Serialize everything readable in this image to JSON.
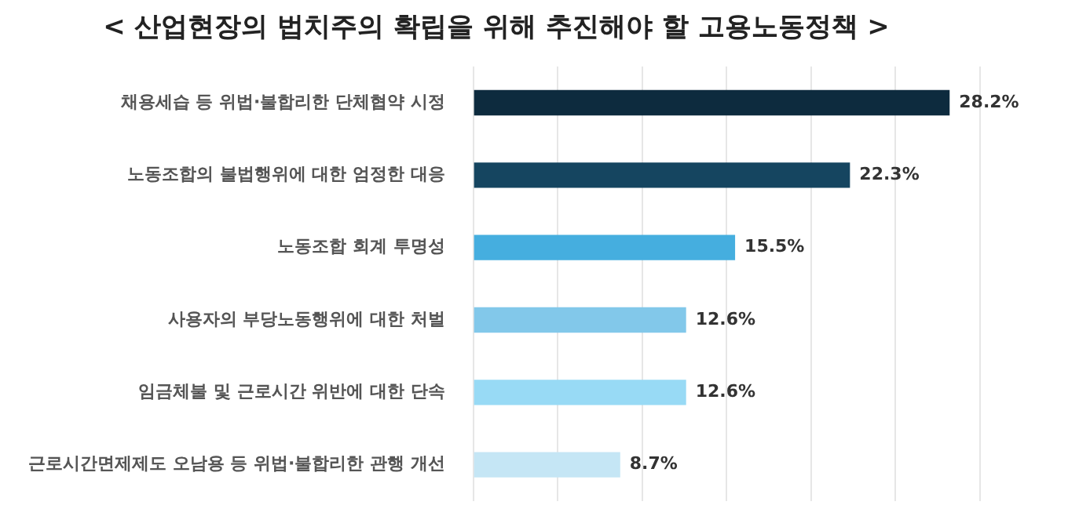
{
  "chart_data": {
    "type": "bar",
    "orientation": "horizontal",
    "title": "< 산업현장의 법치주의 확립을 위해 추진해야 할 고용노동정책 >",
    "categories": [
      "채용세습 등 위법·불합리한 단체협약 시정",
      "노동조합의 불법행위에 대한 엄정한 대응",
      "노동조합 회계 투명성",
      "사용자의 부당노동행위에 대한 처벌",
      "임금체불 및 근로시간 위반에 대한 단속",
      "근로시간면제제도 오남용 등 위법·불합리한 관행 개선"
    ],
    "values": [
      28.2,
      22.3,
      15.5,
      12.6,
      12.6,
      8.7
    ],
    "value_labels": [
      "28.2%",
      "22.3%",
      "15.5%",
      "12.6%",
      "12.6%",
      "8.7%"
    ],
    "colors": [
      "#0d2b3e",
      "#154560",
      "#45aedf",
      "#82c8ea",
      "#98daf5",
      "#c5e6f5"
    ],
    "xlim": [
      0,
      30
    ],
    "xticks": [
      {
        "value": 0,
        "label": null
      },
      {
        "value": 5,
        "label": null
      },
      {
        "value": 10,
        "label": null
      },
      {
        "value": 15,
        "label": null
      },
      {
        "value": 20,
        "label": null
      },
      {
        "value": 25,
        "label": null
      },
      {
        "value": 30,
        "label": null
      }
    ],
    "tick_labels": "y",
    "grid": "x",
    "legend": false
  }
}
